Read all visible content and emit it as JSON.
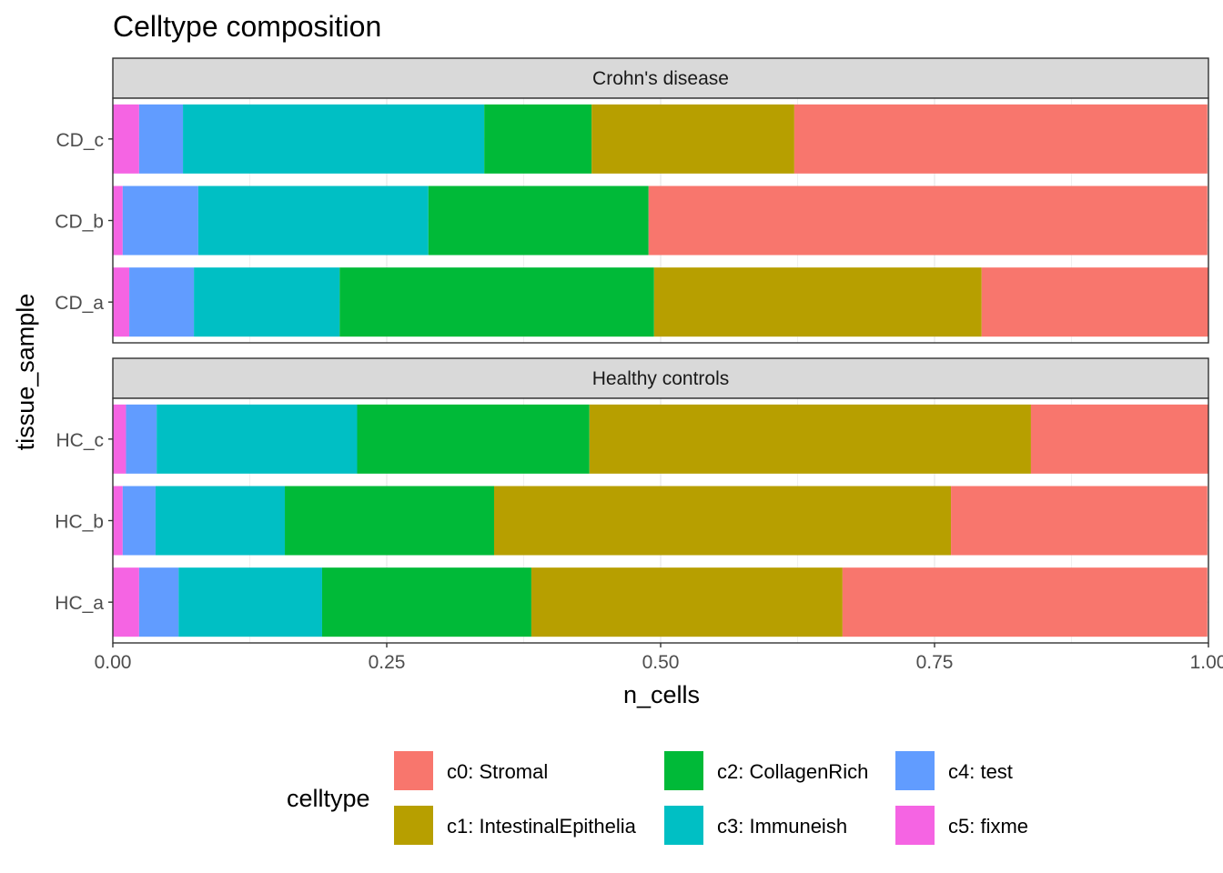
{
  "chart_data": {
    "type": "bar",
    "orientation": "horizontal",
    "stacked": true,
    "title": "Celltype composition",
    "xlabel": "n_cells",
    "ylabel": "tissue_sample",
    "xlim": [
      0,
      1
    ],
    "x_ticks": [
      "0.00",
      "0.25",
      "0.50",
      "0.75",
      "1.00"
    ],
    "grid": true,
    "legend_position": "bottom",
    "legend_title": "celltype",
    "series": [
      {
        "name": "c0: Stromal",
        "color": "#F8766D"
      },
      {
        "name": "c1: IntestinalEpithelia",
        "color": "#B79F00"
      },
      {
        "name": "c2: CollagenRich",
        "color": "#00BA38"
      },
      {
        "name": "c3: Immuneish",
        "color": "#00BFC4"
      },
      {
        "name": "c4: test",
        "color": "#619CFF"
      },
      {
        "name": "c5: fixme",
        "color": "#F564E3"
      }
    ],
    "panels": [
      {
        "label": "Crohn's disease",
        "categories": [
          "CD_c",
          "CD_b",
          "CD_a"
        ],
        "values": {
          "CD_c": [
            0.377,
            0.185,
            0.098,
            0.275,
            0.04,
            0.024
          ],
          "CD_b": [
            0.51,
            0.0,
            0.201,
            0.21,
            0.069,
            0.009
          ],
          "CD_a": [
            0.207,
            0.299,
            0.287,
            0.133,
            0.059,
            0.015
          ]
        }
      },
      {
        "label": "Healthy controls",
        "categories": [
          "HC_c",
          "HC_b",
          "HC_a"
        ],
        "values": {
          "HC_c": [
            0.162,
            0.403,
            0.212,
            0.183,
            0.028,
            0.012
          ],
          "HC_b": [
            0.234,
            0.417,
            0.191,
            0.118,
            0.03,
            0.009
          ],
          "HC_a": [
            0.333,
            0.284,
            0.191,
            0.131,
            0.036,
            0.024
          ]
        }
      }
    ]
  }
}
